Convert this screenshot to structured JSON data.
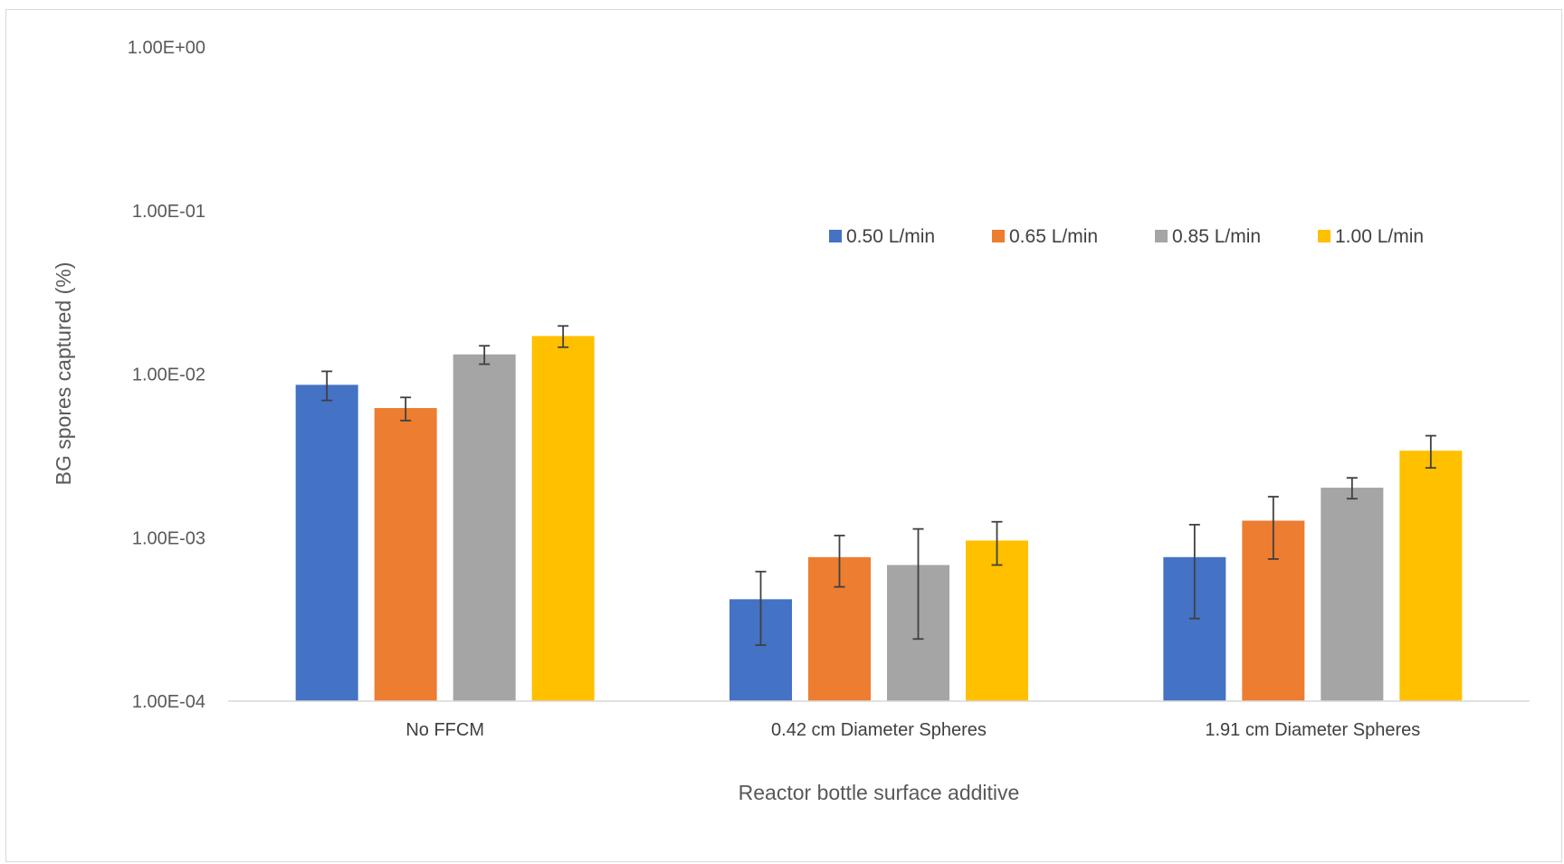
{
  "chart_data": {
    "type": "bar",
    "title": "",
    "xlabel": "Reactor bottle surface additive",
    "ylabel": "BG spores captured (%)",
    "y_scale": "log",
    "ylim": [
      0.0001,
      1
    ],
    "y_ticks": [
      {
        "value": 1,
        "label": "1.00E+00"
      },
      {
        "value": 0.1,
        "label": "1.00E-01"
      },
      {
        "value": 0.01,
        "label": "1.00E-02"
      },
      {
        "value": 0.001,
        "label": "1.00E-03"
      },
      {
        "value": 0.0001,
        "label": "1.00E-04"
      }
    ],
    "grid": false,
    "legend_position": "top-right",
    "categories": [
      "No FFCM",
      "0.42 cm Diameter Spheres",
      "1.91 cm Diameter Spheres"
    ],
    "series": [
      {
        "name": "0.50 L/min",
        "color": "#4472C4",
        "values": [
          0.0086,
          0.00042,
          0.00076
        ],
        "err_low": [
          0.0069,
          0.00022,
          0.00032
        ],
        "err_high": [
          0.0104,
          0.00062,
          0.0012
        ]
      },
      {
        "name": "0.65 L/min",
        "color": "#ED7D31",
        "values": [
          0.0062,
          0.00076,
          0.00127
        ],
        "err_low": [
          0.0052,
          0.0005,
          0.00074
        ],
        "err_high": [
          0.0072,
          0.00103,
          0.00178
        ]
      },
      {
        "name": "0.85 L/min",
        "color": "#A5A5A5",
        "values": [
          0.0132,
          0.00068,
          0.00202
        ],
        "err_low": [
          0.0115,
          0.00024,
          0.00173
        ],
        "err_high": [
          0.0149,
          0.00113,
          0.00232
        ]
      },
      {
        "name": "1.00 L/min",
        "color": "#FFC000",
        "values": [
          0.0171,
          0.00096,
          0.0034
        ],
        "err_low": [
          0.0146,
          0.00068,
          0.00267
        ],
        "err_high": [
          0.0197,
          0.00125,
          0.0042
        ]
      }
    ]
  }
}
